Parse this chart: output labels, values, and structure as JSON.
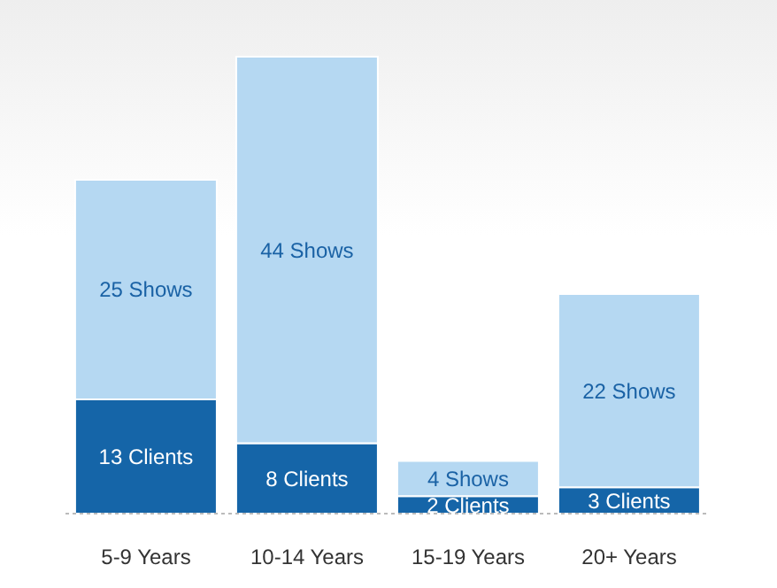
{
  "chart_data": {
    "type": "bar",
    "stacked": true,
    "categories": [
      "5-9 Years",
      "10-14 Years",
      "15-19 Years",
      "20+ Years"
    ],
    "series": [
      {
        "color": "#1565a8",
        "values": [
          13,
          8,
          2,
          3
        ],
        "value_labels": [
          "13 Clients",
          "8 Clients",
          "2 Clients",
          "3 Clients"
        ]
      },
      {
        "color": "#b5d8f2",
        "values": [
          25,
          44,
          4,
          22
        ],
        "value_labels": [
          "25 Shows",
          "44 Shows",
          "4 Shows",
          "22 Shows"
        ]
      }
    ],
    "grid": false,
    "legend": false
  }
}
